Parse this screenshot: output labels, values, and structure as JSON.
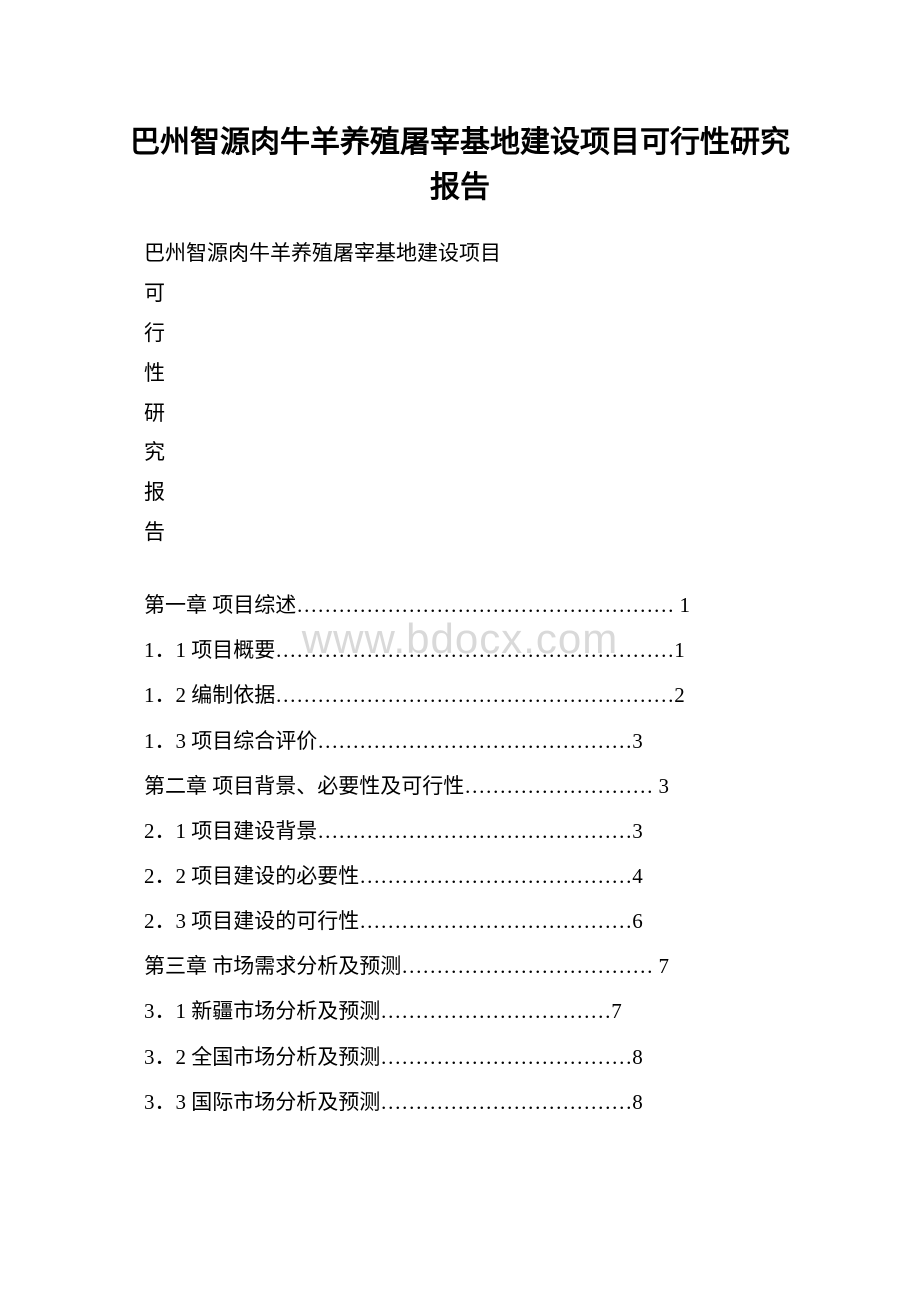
{
  "title": "巴州智源肉牛羊养殖屠宰基地建设项目可行性研究报告",
  "subtitle": "巴州智源肉牛羊养殖屠宰基地建设项目",
  "vertical_chars": [
    "可",
    "行",
    "性",
    "研",
    "究",
    "报",
    "告"
  ],
  "watermark": "www.bdocx.com",
  "toc_entries": [
    {
      "label": "第一章 项目综述",
      "dots": "………………………………………………",
      "page": " 1"
    },
    {
      "label": "1．1 项目概要",
      "dots": "…………………………………………………",
      "page": "1"
    },
    {
      "label": "1．2 编制依据",
      "dots": "…………………………………………………",
      "page": "2"
    },
    {
      "label": "1．3 项目综合评价",
      "dots": "………………………………………",
      "page": "3"
    },
    {
      "label": "第二章 项目背景、必要性及可行性",
      "dots": "………………………",
      "page": " 3"
    },
    {
      "label": "2．1 项目建设背景",
      "dots": "………………………………………",
      "page": "3"
    },
    {
      "label": "2．2 项目建设的必要性",
      "dots": "…………………………………",
      "page": "4"
    },
    {
      "label": "2．3 项目建设的可行性",
      "dots": "…………………………………",
      "page": "6"
    },
    {
      "label": "第三章 市场需求分析及预测",
      "dots": "………………………………",
      "page": " 7"
    },
    {
      "label": "3．1 新疆市场分析及预测",
      "dots": "……………………………",
      "page": "7"
    },
    {
      "label": "3．2 全国市场分析及预测",
      "dots": "………………………………",
      "page": "8"
    },
    {
      "label": "3．3 国际市场分析及预测",
      "dots": "………………………………",
      "page": "8"
    }
  ],
  "colors": {
    "text": "#000000",
    "background": "#ffffff",
    "watermark": "#d9d9d9"
  },
  "typography": {
    "title_fontsize": 30,
    "body_fontsize": 21,
    "watermark_fontsize": 42,
    "font_family": "SimSun"
  }
}
